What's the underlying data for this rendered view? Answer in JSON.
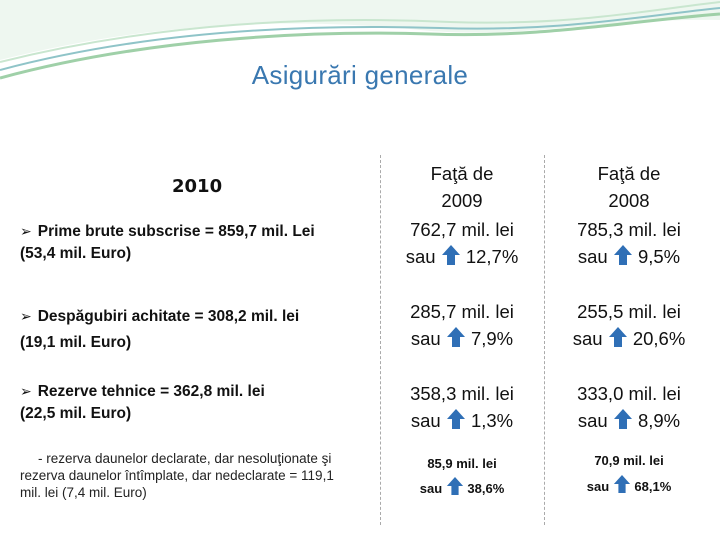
{
  "title": "Asigurări generale",
  "year_label": "2010",
  "items": [
    {
      "line1": "Prime brute subscrise = 859,7 mil. Lei",
      "line2": "(53,4 mil. Euro)"
    },
    {
      "line1": "Despăgubiri achitate = 308,2 mil. lei",
      "line2": "(19,1 mil. Euro)"
    },
    {
      "line1": "Rezerve tehnice = 362,8 mil. lei",
      "line2": "(22,5 mil. Euro)"
    }
  ],
  "note_lines": [
    "- rezerva daunelor declarate, dar nesoluţionate şi",
    "rezerva daunelor  întîmplate, dar nedeclarate = 119,1",
    "mil. lei (7,4 mil. Euro)"
  ],
  "columns": [
    {
      "header_line1": "Faţă de",
      "header_line2": "2009",
      "rows": [
        {
          "value": "762,7 mil. lei",
          "sau": "sau",
          "pct": "12,7%"
        },
        {
          "value": "285,7 mil. lei",
          "sau": "sau",
          "pct": "7,9%"
        },
        {
          "value": "358,3 mil. lei",
          "sau": "sau",
          "pct": "1,3%"
        },
        {
          "value": "85,9 mil. lei",
          "sau": "sau",
          "pct": "38,6%"
        }
      ]
    },
    {
      "header_line1": "Faţă de",
      "header_line2": "2008",
      "rows": [
        {
          "value": "785,3 mil. lei",
          "sau": "sau",
          "pct": "9,5%"
        },
        {
          "value": "255,5 mil. lei",
          "sau": "sau",
          "pct": "20,6%"
        },
        {
          "value": "333,0 mil. lei",
          "sau": "sau",
          "pct": "8,9%"
        },
        {
          "value": "70,9 mil. lei",
          "sau": "sau",
          "pct": "68,1%"
        }
      ]
    }
  ],
  "colors": {
    "title": "#3a78b0",
    "arrow": "#2f6fb6",
    "wave_green": "#9fd0a8",
    "wave_teal": "#8fc4c8"
  }
}
